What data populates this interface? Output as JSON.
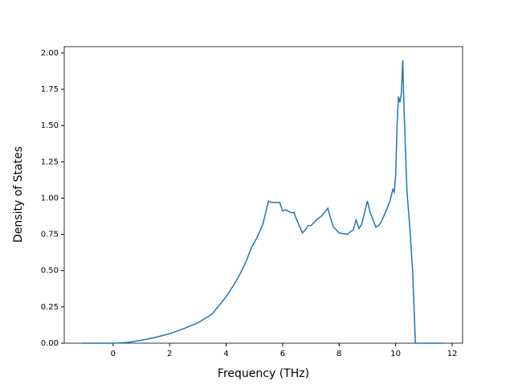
{
  "chart_data": {
    "type": "line",
    "xlabel": "Frequency (THz)",
    "ylabel": "Density of States",
    "x": [
      -1.1,
      -0.5,
      0,
      0.5,
      1,
      1.5,
      2,
      2.5,
      3,
      3.5,
      4,
      4.3,
      4.5,
      4.7,
      4.9,
      5.1,
      5.3,
      5.4,
      5.5,
      5.6,
      5.8,
      5.9,
      6.0,
      6.1,
      6.3,
      6.4,
      6.5,
      6.7,
      6.8,
      6.9,
      7.0,
      7.2,
      7.4,
      7.6,
      7.7,
      7.8,
      8.0,
      8.3,
      8.4,
      8.5,
      8.6,
      8.7,
      8.8,
      8.9,
      9.0,
      9.1,
      9.3,
      9.4,
      9.5,
      9.7,
      9.8,
      9.9,
      9.95,
      10.0,
      10.05,
      10.1,
      10.15,
      10.2,
      10.25,
      10.3,
      10.4,
      10.5,
      10.6,
      10.7,
      11.0,
      11.7
    ],
    "series": [
      {
        "color": "#1f77b4",
        "values": [
          0,
          0,
          0,
          0.005,
          0.02,
          0.04,
          0.065,
          0.1,
          0.14,
          0.2,
          0.32,
          0.41,
          0.48,
          0.56,
          0.66,
          0.73,
          0.82,
          0.9,
          0.98,
          0.97,
          0.97,
          0.97,
          0.91,
          0.92,
          0.9,
          0.9,
          0.85,
          0.76,
          0.78,
          0.81,
          0.81,
          0.85,
          0.88,
          0.93,
          0.86,
          0.8,
          0.76,
          0.75,
          0.77,
          0.78,
          0.85,
          0.79,
          0.82,
          0.9,
          0.98,
          0.9,
          0.8,
          0.81,
          0.84,
          0.93,
          0.98,
          1.06,
          1.04,
          1.15,
          1.5,
          1.7,
          1.66,
          1.72,
          1.95,
          1.6,
          1.05,
          0.8,
          0.5,
          0,
          0,
          0
        ]
      }
    ],
    "xlim": [
      -1.73,
      12.37
    ],
    "ylim": [
      0,
      2.044
    ],
    "xticks": [
      0,
      2,
      4,
      6,
      8,
      10,
      12
    ],
    "yticks": [
      {
        "value": 0,
        "label": "0.00"
      },
      {
        "value": 0.25,
        "label": "0.25"
      },
      {
        "value": 0.5,
        "label": "0.50"
      },
      {
        "value": 0.75,
        "label": "0.75"
      },
      {
        "value": 1,
        "label": "1.00"
      },
      {
        "value": 1.25,
        "label": "1.25"
      },
      {
        "value": 1.5,
        "label": "1.50"
      },
      {
        "value": 1.75,
        "label": "1.75"
      },
      {
        "value": 2,
        "label": "2.00"
      }
    ]
  }
}
